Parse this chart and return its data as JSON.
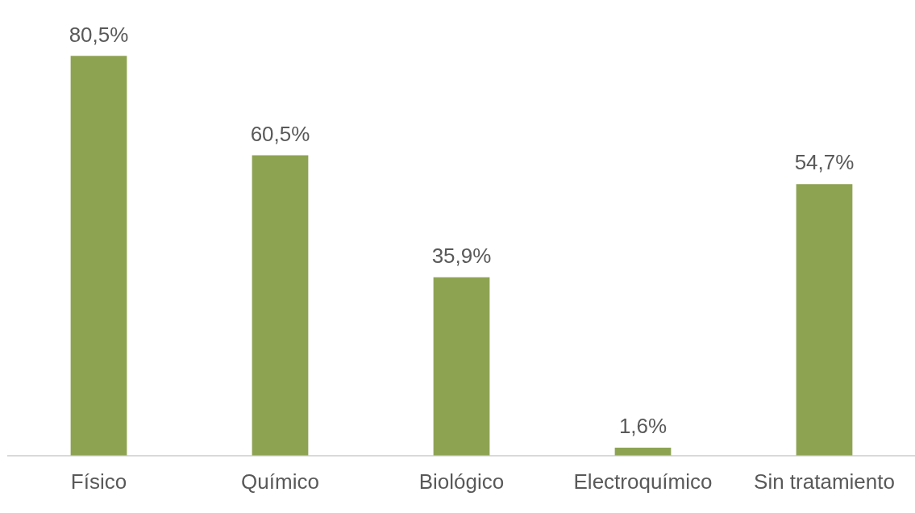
{
  "chart_data": {
    "type": "bar",
    "categories": [
      "Físico",
      "Químico",
      "Biológico",
      "Electroquímico",
      "Sin tratamiento"
    ],
    "values": [
      80.5,
      60.5,
      35.9,
      1.6,
      54.7
    ],
    "value_labels": [
      "80,5%",
      "60,5%",
      "35,9%",
      "1,6%",
      "54,7%"
    ],
    "color": "#8ea352"
  }
}
